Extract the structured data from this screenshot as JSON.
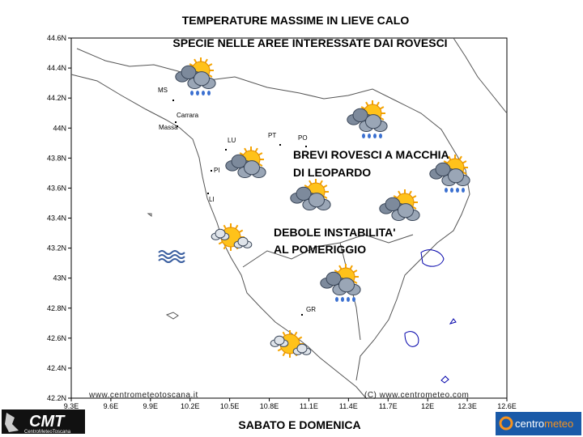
{
  "title_lines": [
    "TEMPERATURE MASSIME IN LIEVE CALO",
    "SPECIE NELLE AREE INTERESSATE DAI ROVESCI"
  ],
  "annotations": [
    "BREVI ROVESCI A MACCHIA",
    "DI LEOPARDO",
    "DEBOLE INSTABILITA'",
    "AL POMERIGGIO"
  ],
  "lat_ticks": [
    "44.6N",
    "44.4N",
    "44.2N",
    "44N",
    "43.8N",
    "43.6N",
    "43.4N",
    "43.2N",
    "43N",
    "42.8N",
    "42.6N",
    "42.4N",
    "42.2N"
  ],
  "lon_ticks": [
    "9.3E",
    "9.6E",
    "9.9E",
    "10.2E",
    "10.5E",
    "10.8E",
    "11.1E",
    "11.4E",
    "11.7E",
    "12E",
    "12.3E",
    "12.6E"
  ],
  "places": [
    "MS",
    "Carrara",
    "Massa",
    "LU",
    "PT",
    "PO",
    "PI",
    "LI",
    "GR"
  ],
  "watermarks": [
    "www.centrometeotoscana.it",
    "(C) www.centrometeo.com"
  ],
  "footer": "SABATO E DOMENICA",
  "logos": {
    "cmt": "CMT",
    "cmt_sub": "CentroMeteoToscana",
    "centro": "centro",
    "meteo": "meteo"
  }
}
